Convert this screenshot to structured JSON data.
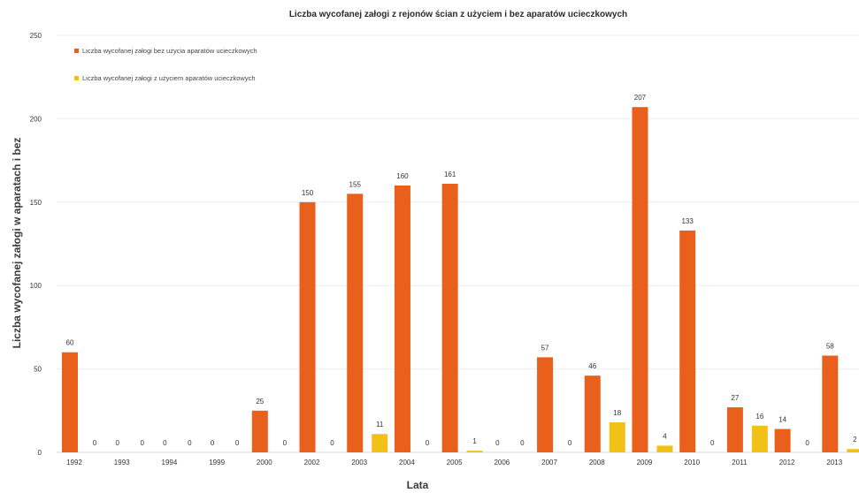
{
  "chart_data": {
    "type": "bar",
    "title": "Liczba wycofanej załogi z rejonów ścian z użyciem i bez aparatów ucieczkowych",
    "xlabel": "Lata",
    "ylabel": "Liczba wycofanej załogi w aparatach i bez",
    "ylim": [
      0,
      250
    ],
    "yticks": [
      0,
      50,
      100,
      150,
      200,
      250
    ],
    "grid": true,
    "legend_position": "top-left",
    "categories": [
      "1992",
      "1993",
      "1994",
      "1999",
      "2000",
      "2002",
      "2003",
      "2004",
      "2005",
      "2006",
      "2007",
      "2008",
      "2009",
      "2010",
      "2011",
      "2012",
      "2013"
    ],
    "series": [
      {
        "name": "Liczba wycofanej załogi bez użycia aparatów ucieczkowych",
        "color": "#e8601c",
        "values": [
          60,
          0,
          0,
          0,
          25,
          150,
          155,
          160,
          161,
          0,
          57,
          46,
          207,
          133,
          27,
          14,
          58
        ]
      },
      {
        "name": "Liczba wycofanej załogi z użyciem aparatów ucieczkowych",
        "color": "#f2c118",
        "values": [
          0,
          0,
          0,
          0,
          0,
          0,
          11,
          0,
          1,
          0,
          0,
          18,
          4,
          0,
          16,
          0,
          2
        ]
      }
    ]
  }
}
